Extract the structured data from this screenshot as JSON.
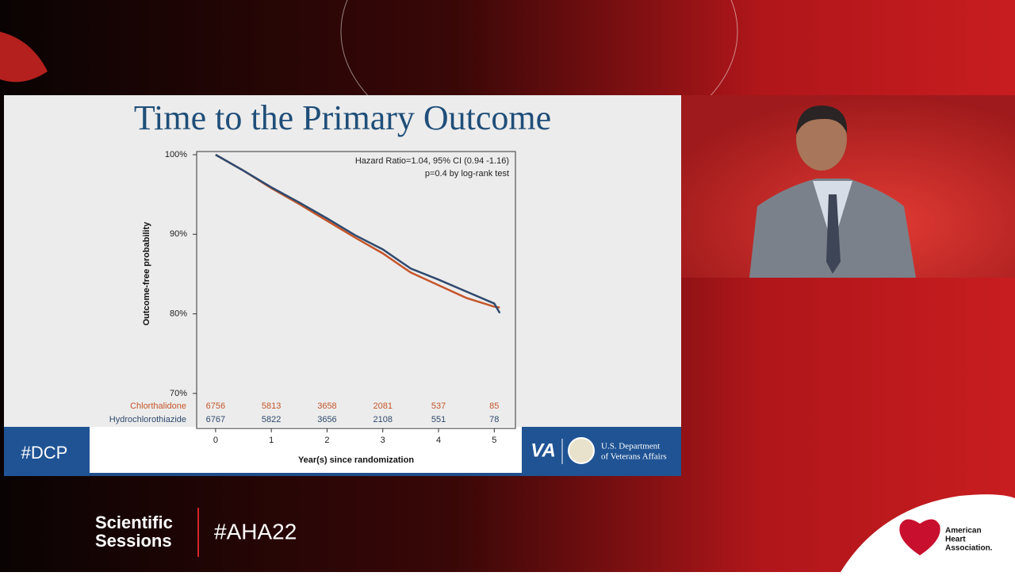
{
  "chart_data": {
    "type": "line",
    "title": "Time to the Primary Outcome",
    "annotations": [
      "Hazard Ratio=1.04, 95% CI (0.94 -1.16)",
      "p=0.4 by log-rank test"
    ],
    "y_label": "Outcome-free probability",
    "x_label": "Year(s) since randomization",
    "x": [
      0,
      0.5,
      1,
      1.5,
      2,
      2.5,
      3,
      3.5,
      4,
      4.5,
      5,
      5.1
    ],
    "series": [
      {
        "name": "Chlorthalidone",
        "color": "#c5562b",
        "values": [
          100,
          98.0,
          95.8,
          93.8,
          91.7,
          89.6,
          87.6,
          85.2,
          83.6,
          82.0,
          80.9,
          80.8
        ],
        "at_risk": [
          6756,
          5813,
          3658,
          2081,
          537,
          85
        ]
      },
      {
        "name": "Hydrochlorothiazide",
        "color": "#2f4a6e",
        "values": [
          100,
          98.0,
          95.9,
          94.0,
          92.0,
          89.9,
          88.1,
          85.7,
          84.3,
          82.8,
          81.3,
          80.1
        ],
        "at_risk": [
          6767,
          5822,
          3656,
          2108,
          551,
          78
        ]
      }
    ],
    "xlim": [
      -0.34,
      5.38
    ],
    "xticks": [
      0,
      1,
      2,
      3,
      4,
      5
    ],
    "ylim": [
      65.6,
      100.4
    ],
    "yticks": [
      {
        "value": 70,
        "label": "70%"
      },
      {
        "value": 80,
        "label": "80%"
      },
      {
        "value": 90,
        "label": "90%"
      },
      {
        "value": 100,
        "label": "100%"
      }
    ],
    "grid": false
  },
  "slide": {
    "hashtag": "#DCP",
    "logo_short": "VA",
    "agency": [
      "U.S. Department",
      "of Veterans Affairs"
    ]
  },
  "broadcast": {
    "event": [
      "Scientific",
      "Sessions"
    ],
    "hashtag": "#AHA22",
    "sponsor": [
      "American",
      "Heart",
      "Association."
    ]
  }
}
